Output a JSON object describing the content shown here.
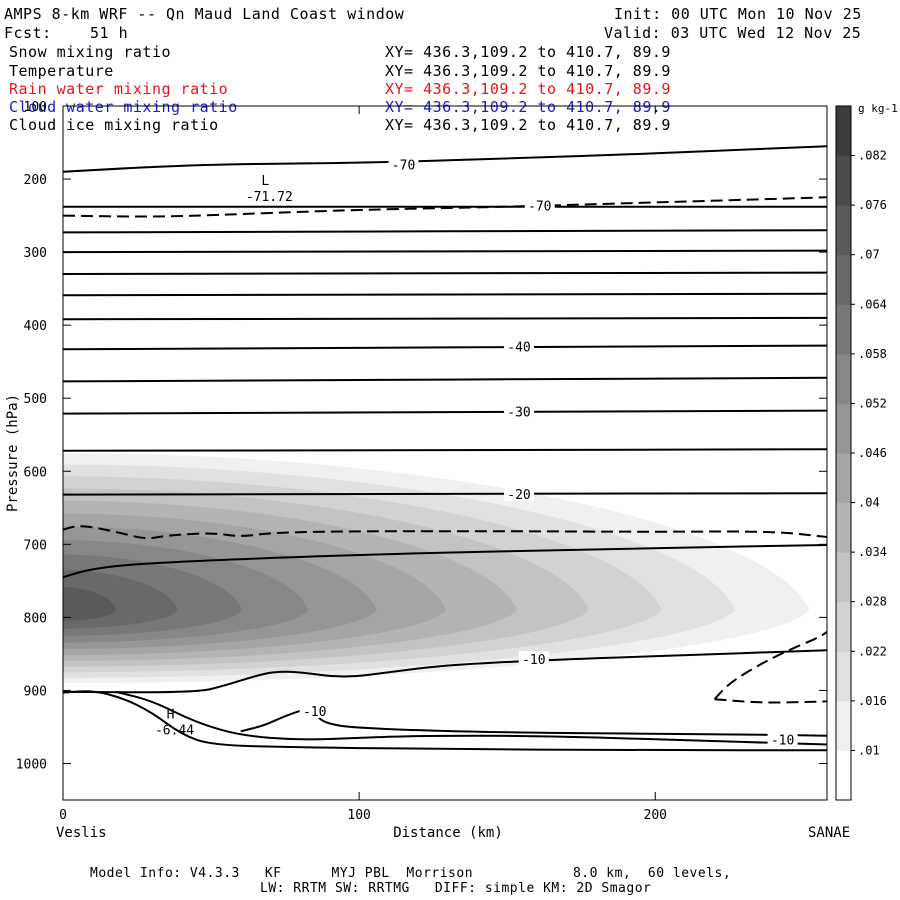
{
  "header": {
    "title": "AMPS 8-km WRF -- Qn Maud Land Coast window",
    "init": "Init: 00 UTC Mon 10 Nov 25",
    "fcst_label": "Fcst:",
    "fcst_value": "51 h",
    "valid": "Valid: 03 UTC Wed 12 Nov 25"
  },
  "fields": [
    {
      "name": "Snow mixing ratio",
      "xy": "XY= 436.3,109.2 to 410.7, 89.9",
      "color": "#000000"
    },
    {
      "name": "Temperature",
      "xy": "XY= 436.3,109.2 to 410.7, 89.9",
      "color": "#000000"
    },
    {
      "name": "Rain water mixing ratio",
      "xy": "XY= 436.3,109.2 to 410.7, 89.9",
      "color": "#e8141c"
    },
    {
      "name": "Cloud water mixing ratio",
      "xy": "XY= 436.3,109.2 to 410.7, 89.9",
      "color": "#1a1ad0"
    },
    {
      "name": "Cloud ice mixing ratio",
      "xy": "XY= 436.3,109.2 to 410.7, 89.9",
      "color": "#000000"
    }
  ],
  "footer": {
    "line1": "Model Info: V4.3.3   KF      MYJ PBL  Morrison            8.0 km,  60 levels,",
    "line2": "LW: RRTM SW: RRTMG   DIFF: simple KM: 2D Smagor"
  },
  "chart_data": {
    "type": "heatmap",
    "xlabel": "Distance (km)",
    "ylabel": "Pressure (hPa)",
    "xlim": [
      0,
      258
    ],
    "ylim": [
      1050,
      100
    ],
    "x_ticks": [
      0,
      100,
      200
    ],
    "y_ticks": [
      100,
      200,
      300,
      400,
      500,
      600,
      700,
      800,
      900,
      1000
    ],
    "x_left_label": "Veslis",
    "x_right_label": "SANAE",
    "colorbar": {
      "unit": "g kg-1",
      "tick_labels": [
        ".01",
        ".016",
        ".022",
        ".028",
        ".034",
        ".04",
        ".046",
        ".052",
        ".058",
        ".064",
        ".07",
        ".076",
        ".082"
      ],
      "min": 0.004,
      "max": 0.088,
      "step": 0.006,
      "color_low": "#ffffff",
      "color_high": "#3c3c3c"
    },
    "snow_field": {
      "core_x_km": 0,
      "core_pressure_hPa": 790,
      "max_value": 0.072,
      "top_edge_hPa": 575,
      "bottom_edge_hPa": 890,
      "right_extent_km": 252
    },
    "temperature_contours": [
      {
        "level": -70,
        "points": [
          [
            0,
            190
          ],
          [
            45,
            180
          ],
          [
            100,
            178
          ],
          [
            150,
            172
          ],
          [
            200,
            165
          ],
          [
            258,
            155
          ]
        ]
      },
      {
        "level": null,
        "points": [
          [
            0,
            238
          ],
          [
            258,
            238
          ]
        ]
      },
      {
        "level": null,
        "points": [
          [
            0,
            273
          ],
          [
            258,
            270
          ]
        ]
      },
      {
        "level": null,
        "points": [
          [
            0,
            300
          ],
          [
            258,
            298
          ]
        ]
      },
      {
        "level": null,
        "points": [
          [
            0,
            330
          ],
          [
            258,
            328
          ]
        ]
      },
      {
        "level": null,
        "points": [
          [
            0,
            359
          ],
          [
            258,
            357
          ]
        ]
      },
      {
        "level": null,
        "points": [
          [
            0,
            392
          ],
          [
            258,
            390
          ]
        ]
      },
      {
        "level": -40,
        "points": [
          [
            0,
            433
          ],
          [
            258,
            428
          ]
        ]
      },
      {
        "level": null,
        "points": [
          [
            0,
            477
          ],
          [
            258,
            472
          ]
        ]
      },
      {
        "level": -30,
        "points": [
          [
            0,
            521
          ],
          [
            258,
            517
          ]
        ]
      },
      {
        "level": null,
        "points": [
          [
            0,
            572
          ],
          [
            258,
            570
          ]
        ]
      },
      {
        "level": -20,
        "points": [
          [
            0,
            632
          ],
          [
            258,
            630
          ]
        ]
      },
      {
        "level": null,
        "points": [
          [
            0,
            745
          ],
          [
            10,
            733
          ],
          [
            30,
            725
          ],
          [
            100,
            714
          ],
          [
            200,
            705
          ],
          [
            258,
            701
          ]
        ]
      },
      {
        "level": -10,
        "points": [
          [
            0,
            902
          ],
          [
            45,
            903
          ],
          [
            55,
            893
          ],
          [
            65,
            880
          ],
          [
            72,
            874
          ],
          [
            80,
            875
          ],
          [
            95,
            883
          ],
          [
            110,
            875
          ],
          [
            130,
            865
          ],
          [
            160,
            859
          ],
          [
            200,
            853
          ],
          [
            258,
            845
          ]
        ]
      },
      {
        "level": -10,
        "points": [
          [
            18,
            902
          ],
          [
            30,
            914
          ],
          [
            45,
            944
          ],
          [
            60,
            962
          ],
          [
            80,
            968
          ],
          [
            100,
            965
          ],
          [
            120,
            962
          ],
          [
            160,
            962
          ],
          [
            200,
            967
          ],
          [
            258,
            974
          ]
        ]
      },
      {
        "level": null,
        "points": [
          [
            0,
            903
          ],
          [
            10,
            900
          ],
          [
            20,
            910
          ],
          [
            30,
            930
          ],
          [
            40,
            960
          ],
          [
            50,
            975
          ],
          [
            80,
            978
          ],
          [
            120,
            980
          ],
          [
            200,
            982
          ],
          [
            258,
            982
          ]
        ]
      },
      {
        "level": -10,
        "points": [
          [
            60,
            956
          ],
          [
            68,
            948
          ],
          [
            75,
            935
          ],
          [
            80,
            928
          ]
        ]
      },
      {
        "level": null,
        "points": [
          [
            85,
            930
          ],
          [
            88,
            945
          ],
          [
            100,
            952
          ],
          [
            150,
            958
          ],
          [
            230,
            960
          ],
          [
            258,
            962
          ]
        ]
      }
    ],
    "dashed_contours": [
      {
        "level": -70,
        "points": [
          [
            0,
            250
          ],
          [
            30,
            252
          ],
          [
            60,
            248
          ],
          [
            100,
            242
          ],
          [
            150,
            238
          ],
          [
            200,
            232
          ],
          [
            258,
            225
          ]
        ]
      },
      {
        "level": null,
        "points": [
          [
            0,
            680
          ],
          [
            5,
            674
          ],
          [
            12,
            678
          ],
          [
            20,
            685
          ],
          [
            28,
            693
          ],
          [
            35,
            688
          ],
          [
            50,
            684
          ],
          [
            60,
            690
          ],
          [
            70,
            684
          ],
          [
            100,
            682
          ],
          [
            150,
            682
          ],
          [
            200,
            683
          ],
          [
            240,
            682
          ],
          [
            258,
            690
          ]
        ]
      },
      {
        "level": null,
        "points": [
          [
            220,
            912
          ],
          [
            225,
            890
          ],
          [
            235,
            865
          ],
          [
            245,
            845
          ],
          [
            255,
            828
          ],
          [
            258,
            820
          ]
        ]
      },
      {
        "level": null,
        "points": [
          [
            220,
            912
          ],
          [
            235,
            917
          ],
          [
            250,
            916
          ],
          [
            258,
            915
          ]
        ]
      }
    ],
    "contour_labels": [
      {
        "text": "-70",
        "x": 115,
        "p": 180
      },
      {
        "text": "-70",
        "x": 161,
        "p": 236
      },
      {
        "text": "-40",
        "x": 154,
        "p": 429
      },
      {
        "text": "-30",
        "x": 154,
        "p": 518
      },
      {
        "text": "-20",
        "x": 154,
        "p": 631
      },
      {
        "text": "-10",
        "x": 159,
        "p": 857
      },
      {
        "text": "-10",
        "x": 85,
        "p": 928
      },
      {
        "text": "-10",
        "x": 243,
        "p": 967
      }
    ],
    "extrema": [
      {
        "mark": "L",
        "value": "-71.72",
        "x": 69,
        "p": 222
      },
      {
        "mark": "H",
        "value": "-6.44",
        "x": 37,
        "p": 952
      }
    ]
  }
}
